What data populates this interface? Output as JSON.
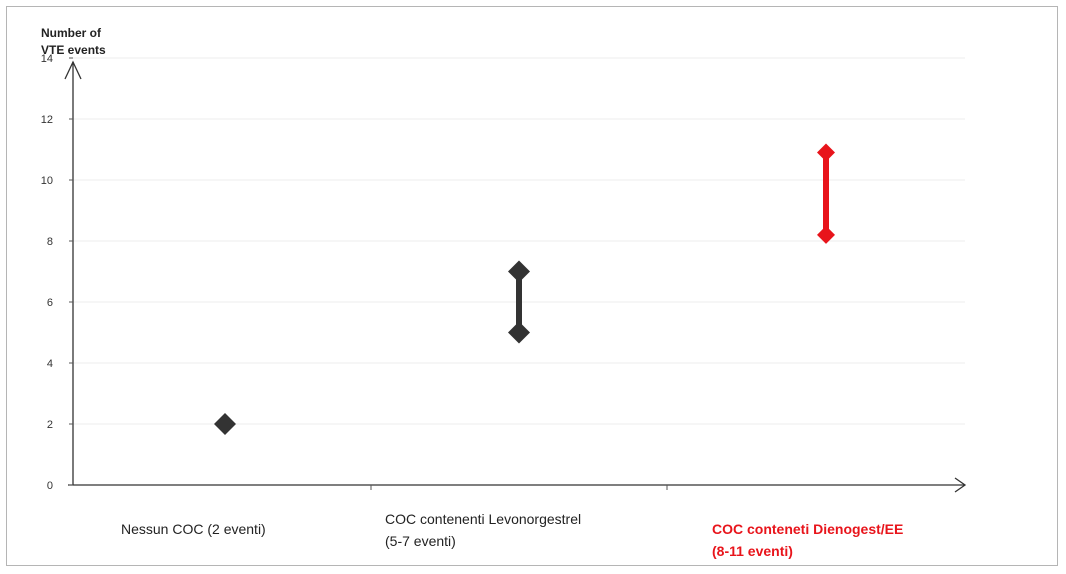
{
  "chart_data": {
    "type": "range",
    "ylabel": "Number of\nVTE events",
    "ylim": [
      0,
      14
    ],
    "yticks": [
      0,
      2,
      4,
      6,
      8,
      10,
      12,
      14
    ],
    "grid": true,
    "categories": [
      {
        "label": "Nessun COC (2 eventi)",
        "low": 2,
        "high": 2,
        "color": "#333333",
        "highlight": false
      },
      {
        "label": "COC contenenti Levonorgestrel\n(5-7 eventi)",
        "low": 5,
        "high": 7,
        "color": "#333333",
        "highlight": false
      },
      {
        "label": "COC conteneti Dienogest/EE\n(8-11 eventi)",
        "low": 8.2,
        "high": 10.9,
        "color": "#e8141b",
        "highlight": true
      }
    ]
  }
}
